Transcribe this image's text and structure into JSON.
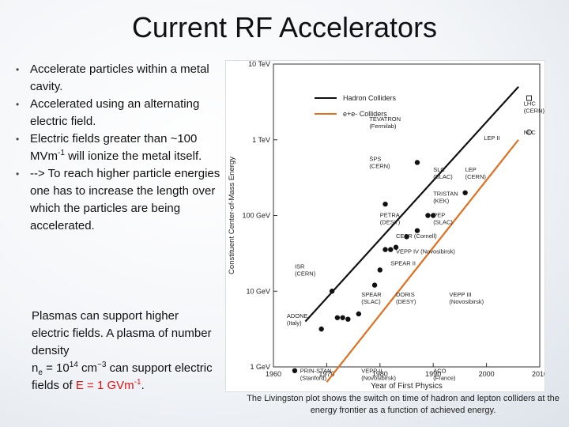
{
  "slide": {
    "title": "Current RF Accelerators",
    "bullets": [
      "Accelerate particles within a metal cavity.",
      "Accelerated using an alternating electric field.",
      "Electric fields greater than ~100 MVm",
      "--> To reach higher particle energies one has to increase the length over which the particles are being accelerated."
    ],
    "bullet3_sup": "-1",
    "bullet3_tail": " will ionize the metal itself.",
    "plasma": {
      "line1": "Plasmas can support higher electric fields. A plasma of number density",
      "ne_base": "n",
      "ne_sub": "e",
      "ne_eq": " = 10",
      "ne_exp": "14",
      "ne_unit": " cm",
      "ne_unit_exp": "−3",
      "line2": " can support electric fields of ",
      "efield": "E = 1 GVm",
      "efield_exp": "-1",
      "period": "."
    },
    "caption": "The Livingston plot shows the switch on time of hadron and lepton colliders at the energy frontier as a function of achieved energy."
  },
  "chart_data": {
    "type": "scatter",
    "xlabel": "Year of First Physics",
    "ylabel": "Constituent Center-of-Mass Energy",
    "xlim": [
      1960,
      2010
    ],
    "ylim_log10_eV": [
      9,
      13
    ],
    "x_ticks": [
      "1960",
      "1970",
      "1980",
      "1990",
      "2000",
      "2010"
    ],
    "y_ticks": [
      "1 GeV",
      "10 GeV",
      "100 GeV",
      "1 TeV",
      "10 TeV"
    ],
    "legend": [
      "Hadron Colliders",
      "e+e- Colliders"
    ],
    "legend_superscripts": {
      "plus": "+",
      "minus": "-"
    },
    "colors": {
      "hadron": "#111111",
      "lepton": "#e07020",
      "frame": "#333333"
    },
    "hadron_trend": {
      "from": [
        1966,
        9.6
      ],
      "to": [
        2006,
        12.7
      ]
    },
    "lepton_trend": {
      "from": [
        1970,
        8.8
      ],
      "to": [
        2006,
        12.0
      ]
    },
    "points": [
      {
        "year": 1971,
        "log10E": 10.0,
        "shape": "filled"
      },
      {
        "year": 1981,
        "log10E": 11.15,
        "shape": "filled"
      },
      {
        "year": 1987,
        "log10E": 11.7,
        "shape": "filled"
      },
      {
        "year": 2008,
        "log10E": 12.55,
        "shape": "open-square"
      },
      {
        "year": 1989,
        "log10E": 11.0,
        "shape": "filled"
      },
      {
        "year": 1990,
        "log10E": 11.0,
        "shape": "filled"
      },
      {
        "year": 1996,
        "log10E": 11.3,
        "shape": "filled"
      },
      {
        "year": 2008,
        "log10E": 12.1,
        "shape": "open-circle"
      },
      {
        "year": 1969,
        "log10E": 9.5,
        "shape": "filled"
      },
      {
        "year": 1972,
        "log10E": 9.65,
        "shape": "filled"
      },
      {
        "year": 1973,
        "log10E": 9.65,
        "shape": "filled"
      },
      {
        "year": 1974,
        "log10E": 9.63,
        "shape": "filled"
      },
      {
        "year": 1976,
        "log10E": 9.7,
        "shape": "filled"
      },
      {
        "year": 1979,
        "log10E": 10.08,
        "shape": "filled"
      },
      {
        "year": 1980,
        "log10E": 10.28,
        "shape": "filled"
      },
      {
        "year": 1981,
        "log10E": 10.55,
        "shape": "filled"
      },
      {
        "year": 1982,
        "log10E": 10.55,
        "shape": "filled"
      },
      {
        "year": 1983,
        "log10E": 10.58,
        "shape": "filled"
      },
      {
        "year": 1985,
        "log10E": 10.72,
        "shape": "filled"
      },
      {
        "year": 1987,
        "log10E": 10.8,
        "shape": "filled"
      },
      {
        "year": 1964,
        "log10E": 8.95,
        "shape": "filled"
      }
    ],
    "labels": [
      {
        "text": "TEVATRON",
        "sub": "(Fermilab)",
        "year": 1978,
        "log10E": 12.25
      },
      {
        "text": "S̄PS",
        "sub": "(CERN)",
        "year": 1978,
        "log10E": 11.72
      },
      {
        "text": "LHC",
        "sub": "(CERN)",
        "year": 2007,
        "log10E": 12.45
      },
      {
        "text": "NLC",
        "sub": "",
        "year": 2007,
        "log10E": 12.07
      },
      {
        "text": "LEP II",
        "sub": "",
        "year": 1999.5,
        "log10E": 12.0
      },
      {
        "text": "SLC",
        "sub": "(SLAC)",
        "year": 1990,
        "log10E": 11.58
      },
      {
        "text": "LEP",
        "sub": "(CERN)",
        "year": 1996,
        "log10E": 11.58
      },
      {
        "text": "TRISTAN",
        "sub": "(KEK)",
        "year": 1990,
        "log10E": 11.26
      },
      {
        "text": "PETRA",
        "sub": "(DESY)",
        "year": 1980,
        "log10E": 10.98
      },
      {
        "text": "PEP",
        "sub": "(SLAC)",
        "year": 1990,
        "log10E": 10.98
      },
      {
        "text": "CESR (Cornell)",
        "sub": "",
        "year": 1983,
        "log10E": 10.7
      },
      {
        "text": "VEPP IV (Novosibirsk)",
        "sub": "",
        "year": 1983,
        "log10E": 10.5
      },
      {
        "text": "SPEAR II",
        "sub": "",
        "year": 1982,
        "log10E": 10.34
      },
      {
        "text": "ISR",
        "sub": "(CERN)",
        "year": 1964,
        "log10E": 10.3
      },
      {
        "text": "SPEAR",
        "sub": "(SLAC)",
        "year": 1976.5,
        "log10E": 9.93
      },
      {
        "text": "DORIS",
        "sub": "(DESY)",
        "year": 1983,
        "log10E": 9.93
      },
      {
        "text": "VEPP III",
        "sub": "(Novosibirsk)",
        "year": 1993,
        "log10E": 9.93
      },
      {
        "text": "ADONE",
        "sub": "(Italy)",
        "year": 1962.5,
        "log10E": 9.65
      },
      {
        "text": "PRIN-STAN",
        "sub": "(Stanford)",
        "year": 1965,
        "log10E": 8.92
      },
      {
        "text": "VEPP II",
        "sub": "(Novosibirsk)",
        "year": 1976.5,
        "log10E": 8.92
      },
      {
        "text": "ACO",
        "sub": "(France)",
        "year": 1990,
        "log10E": 8.92
      }
    ]
  }
}
